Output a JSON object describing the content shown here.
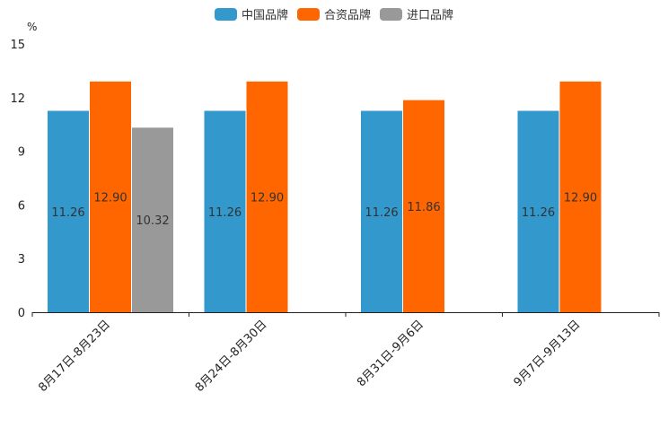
{
  "chart_data": {
    "type": "bar",
    "unit": "%",
    "categories": [
      "8月17日-8月23日",
      "8月24日-8月30日",
      "8月31日-9月6日",
      "9月7日-9月13日"
    ],
    "series": [
      {
        "name": "中国品牌",
        "color": "#3398cc",
        "values": [
          11.26,
          11.26,
          11.26,
          11.26
        ],
        "labels": [
          "11.26",
          "11.26",
          "11.26",
          "11.26"
        ]
      },
      {
        "name": "合资品牌",
        "color": "#ff6600",
        "values": [
          12.9,
          12.9,
          11.86,
          12.9
        ],
        "labels": [
          "12.90",
          "12.90",
          "11.86",
          "12.90"
        ]
      },
      {
        "name": "进口品牌",
        "color": "#999999",
        "values": [
          10.32,
          null,
          null,
          null
        ],
        "labels": [
          "10.32",
          null,
          null,
          null
        ]
      }
    ],
    "yticks": [
      "0",
      "3",
      "6",
      "9",
      "12",
      "15"
    ],
    "ylim": [
      0,
      15
    ],
    "legend_position": "top-center"
  }
}
